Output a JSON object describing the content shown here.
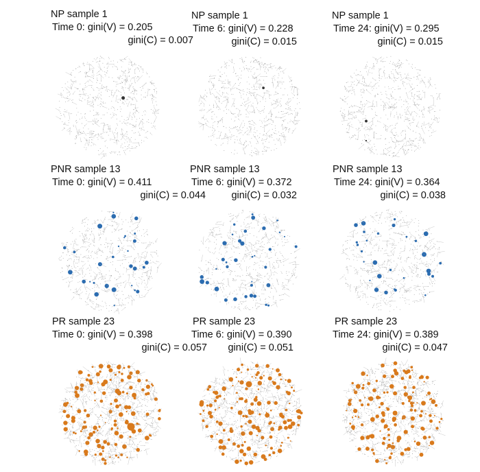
{
  "colors": {
    "np_node": "#333333",
    "pnr_node": "#2b6cb0",
    "pr_node": "#d97a1c",
    "edge": "#b9b9b9"
  },
  "panels": [
    {
      "sample": "NP sample 1",
      "time_line": "Time 0: gini(V) = 0.205",
      "gini_c_line": "gini(C) = 0.007",
      "group": "np"
    },
    {
      "sample": "NP sample 1",
      "time_line": "Time 6: gini(V) = 0.228",
      "gini_c_line": "gini(C) = 0.015",
      "group": "np"
    },
    {
      "sample": "NP sample 1",
      "time_line": "Time 24: gini(V) = 0.295",
      "gini_c_line": "gini(C) = 0.015",
      "group": "np"
    },
    {
      "sample": "PNR sample 13",
      "time_line": "Time 0: gini(V) = 0.411",
      "gini_c_line": "gini(C) = 0.044",
      "group": "pnr"
    },
    {
      "sample": "PNR sample 13",
      "time_line": "Time 6: gini(V) = 0.372",
      "gini_c_line": "gini(C) = 0.032",
      "group": "pnr"
    },
    {
      "sample": "PNR sample 13",
      "time_line": "Time 24: gini(V) = 0.364",
      "gini_c_line": "gini(C) = 0.038",
      "group": "pnr"
    },
    {
      "sample": "PR sample 23",
      "time_line": "Time 0: gini(V) = 0.398",
      "gini_c_line": "gini(C) = 0.057",
      "group": "pr"
    },
    {
      "sample": "PR sample 23",
      "time_line": "Time 6: gini(V) = 0.390",
      "gini_c_line": "gini(C) = 0.051",
      "group": "pr"
    },
    {
      "sample": "PR sample 23",
      "time_line": "Time 24: gini(V) = 0.389",
      "gini_c_line": "gini(C) = 0.047",
      "group": "pr"
    }
  ]
}
